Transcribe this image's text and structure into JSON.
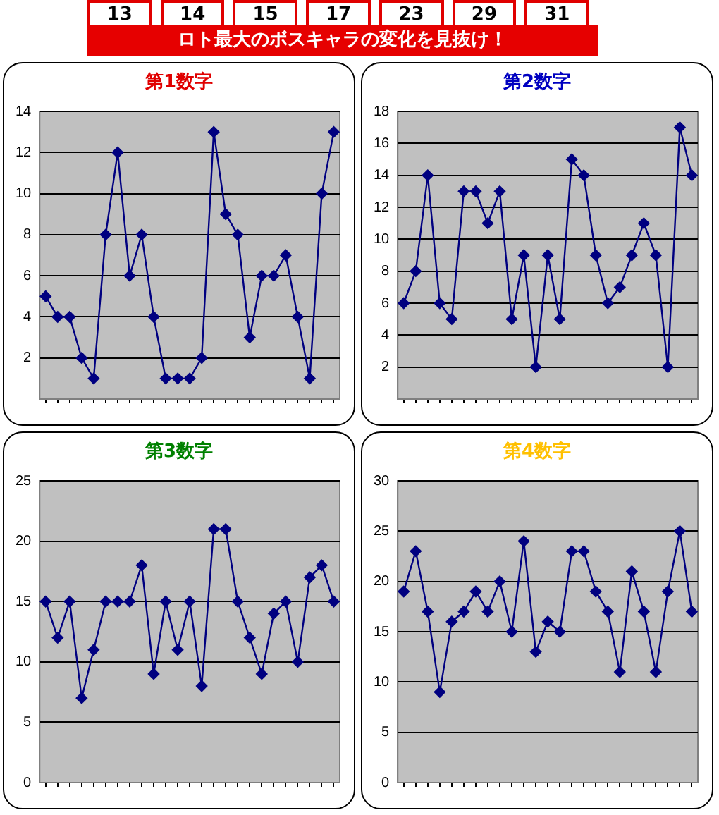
{
  "chart_data": [
    {
      "type": "other",
      "title": "ロト最大のボスキャラの変化を見抜け！",
      "annotations": [
        "13",
        "14",
        "15",
        "17",
        "23",
        "29",
        "31"
      ]
    },
    {
      "type": "line",
      "title": "第1数字",
      "categories": [
        null,
        null,
        null,
        null,
        null,
        null,
        null,
        null,
        null,
        null,
        null,
        null,
        null,
        null,
        null,
        null,
        null,
        null,
        null,
        null,
        null,
        null,
        null,
        null,
        null
      ],
      "series": [
        {
          "color": "#000080",
          "values": [
            5,
            4,
            4,
            2,
            1,
            8,
            12,
            6,
            8,
            4,
            1,
            1,
            1,
            2,
            13,
            9,
            8,
            3,
            6,
            6,
            7,
            4,
            1,
            10,
            13
          ]
        }
      ],
      "ylim": [
        0,
        14
      ],
      "yticks": [
        2,
        4,
        6,
        8,
        10,
        12,
        14
      ],
      "grid": "y",
      "marker": "diamond",
      "tick_labels": "y"
    },
    {
      "type": "line",
      "title": "第2数字",
      "categories": [
        null,
        null,
        null,
        null,
        null,
        null,
        null,
        null,
        null,
        null,
        null,
        null,
        null,
        null,
        null,
        null,
        null,
        null,
        null,
        null,
        null,
        null,
        null,
        null,
        null
      ],
      "series": [
        {
          "color": "#000080",
          "values": [
            6,
            8,
            14,
            6,
            5,
            13,
            13,
            11,
            13,
            5,
            9,
            2,
            9,
            5,
            15,
            14,
            9,
            6,
            7,
            9,
            11,
            9,
            2,
            17,
            14
          ]
        }
      ],
      "ylim": [
        0,
        18
      ],
      "yticks": [
        2,
        4,
        6,
        8,
        10,
        12,
        14,
        16,
        18
      ],
      "grid": "y",
      "marker": "diamond",
      "tick_labels": "y"
    },
    {
      "type": "line",
      "title": "第3数字",
      "categories": [
        null,
        null,
        null,
        null,
        null,
        null,
        null,
        null,
        null,
        null,
        null,
        null,
        null,
        null,
        null,
        null,
        null,
        null,
        null,
        null,
        null,
        null,
        null,
        null,
        null
      ],
      "series": [
        {
          "color": "#000080",
          "values": [
            15,
            12,
            15,
            7,
            11,
            15,
            15,
            15,
            18,
            9,
            15,
            11,
            15,
            8,
            21,
            21,
            15,
            12,
            9,
            14,
            15,
            10,
            17,
            18,
            15
          ]
        }
      ],
      "ylim": [
        0,
        25
      ],
      "yticks": [
        0,
        5,
        10,
        15,
        20,
        25
      ],
      "grid": "y",
      "marker": "diamond",
      "tick_labels": "y"
    },
    {
      "type": "line",
      "title": "第4数字",
      "categories": [
        null,
        null,
        null,
        null,
        null,
        null,
        null,
        null,
        null,
        null,
        null,
        null,
        null,
        null,
        null,
        null,
        null,
        null,
        null,
        null,
        null,
        null,
        null,
        null,
        null
      ],
      "series": [
        {
          "color": "#000080",
          "values": [
            19,
            23,
            17,
            9,
            16,
            17,
            19,
            17,
            20,
            15,
            24,
            13,
            16,
            15,
            23,
            23,
            19,
            17,
            11,
            21,
            17,
            11,
            19,
            25,
            17
          ]
        }
      ],
      "ylim": [
        0,
        30
      ],
      "yticks": [
        0,
        5,
        10,
        15,
        20,
        25,
        30
      ],
      "grid": "y",
      "marker": "diamond",
      "tick_labels": "y"
    }
  ]
}
